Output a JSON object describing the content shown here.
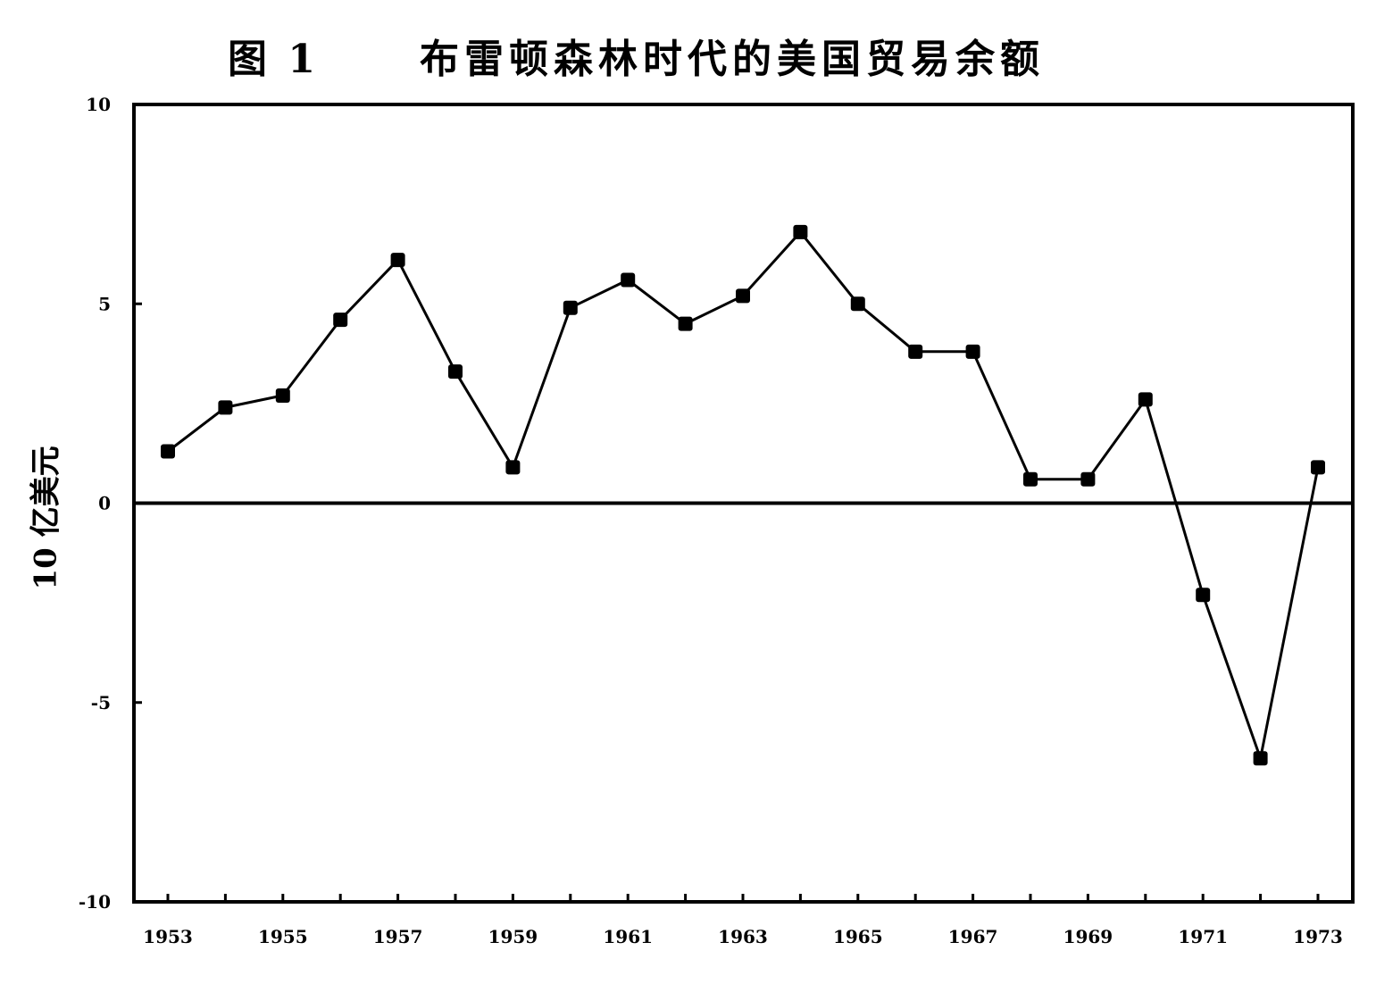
{
  "chart_data": {
    "type": "line",
    "title_number": "图 1",
    "title": "布雷顿森林时代的美国贸易余额",
    "ylabel": "10 亿美元",
    "xlabel": "",
    "x": [
      1953,
      1954,
      1955,
      1956,
      1957,
      1958,
      1959,
      1960,
      1961,
      1962,
      1963,
      1964,
      1965,
      1966,
      1967,
      1968,
      1969,
      1970,
      1971,
      1972,
      1973
    ],
    "values": [
      1.3,
      2.4,
      2.7,
      4.6,
      6.1,
      3.3,
      0.9,
      4.9,
      5.6,
      4.5,
      5.2,
      6.8,
      5.0,
      3.8,
      3.8,
      0.6,
      0.6,
      2.6,
      -2.3,
      -6.4,
      0.9
    ],
    "ylim": [
      -10,
      10
    ],
    "yticks": [
      "10",
      "5",
      "0",
      "-5",
      "-10"
    ],
    "xticks": [
      "1953",
      "1955",
      "1957",
      "1959",
      "1961",
      "1963",
      "1965",
      "1967",
      "1969",
      "1971",
      "1973"
    ],
    "grid": false,
    "legend": "none",
    "line_color": "#000000",
    "marker_color": "#000000"
  }
}
